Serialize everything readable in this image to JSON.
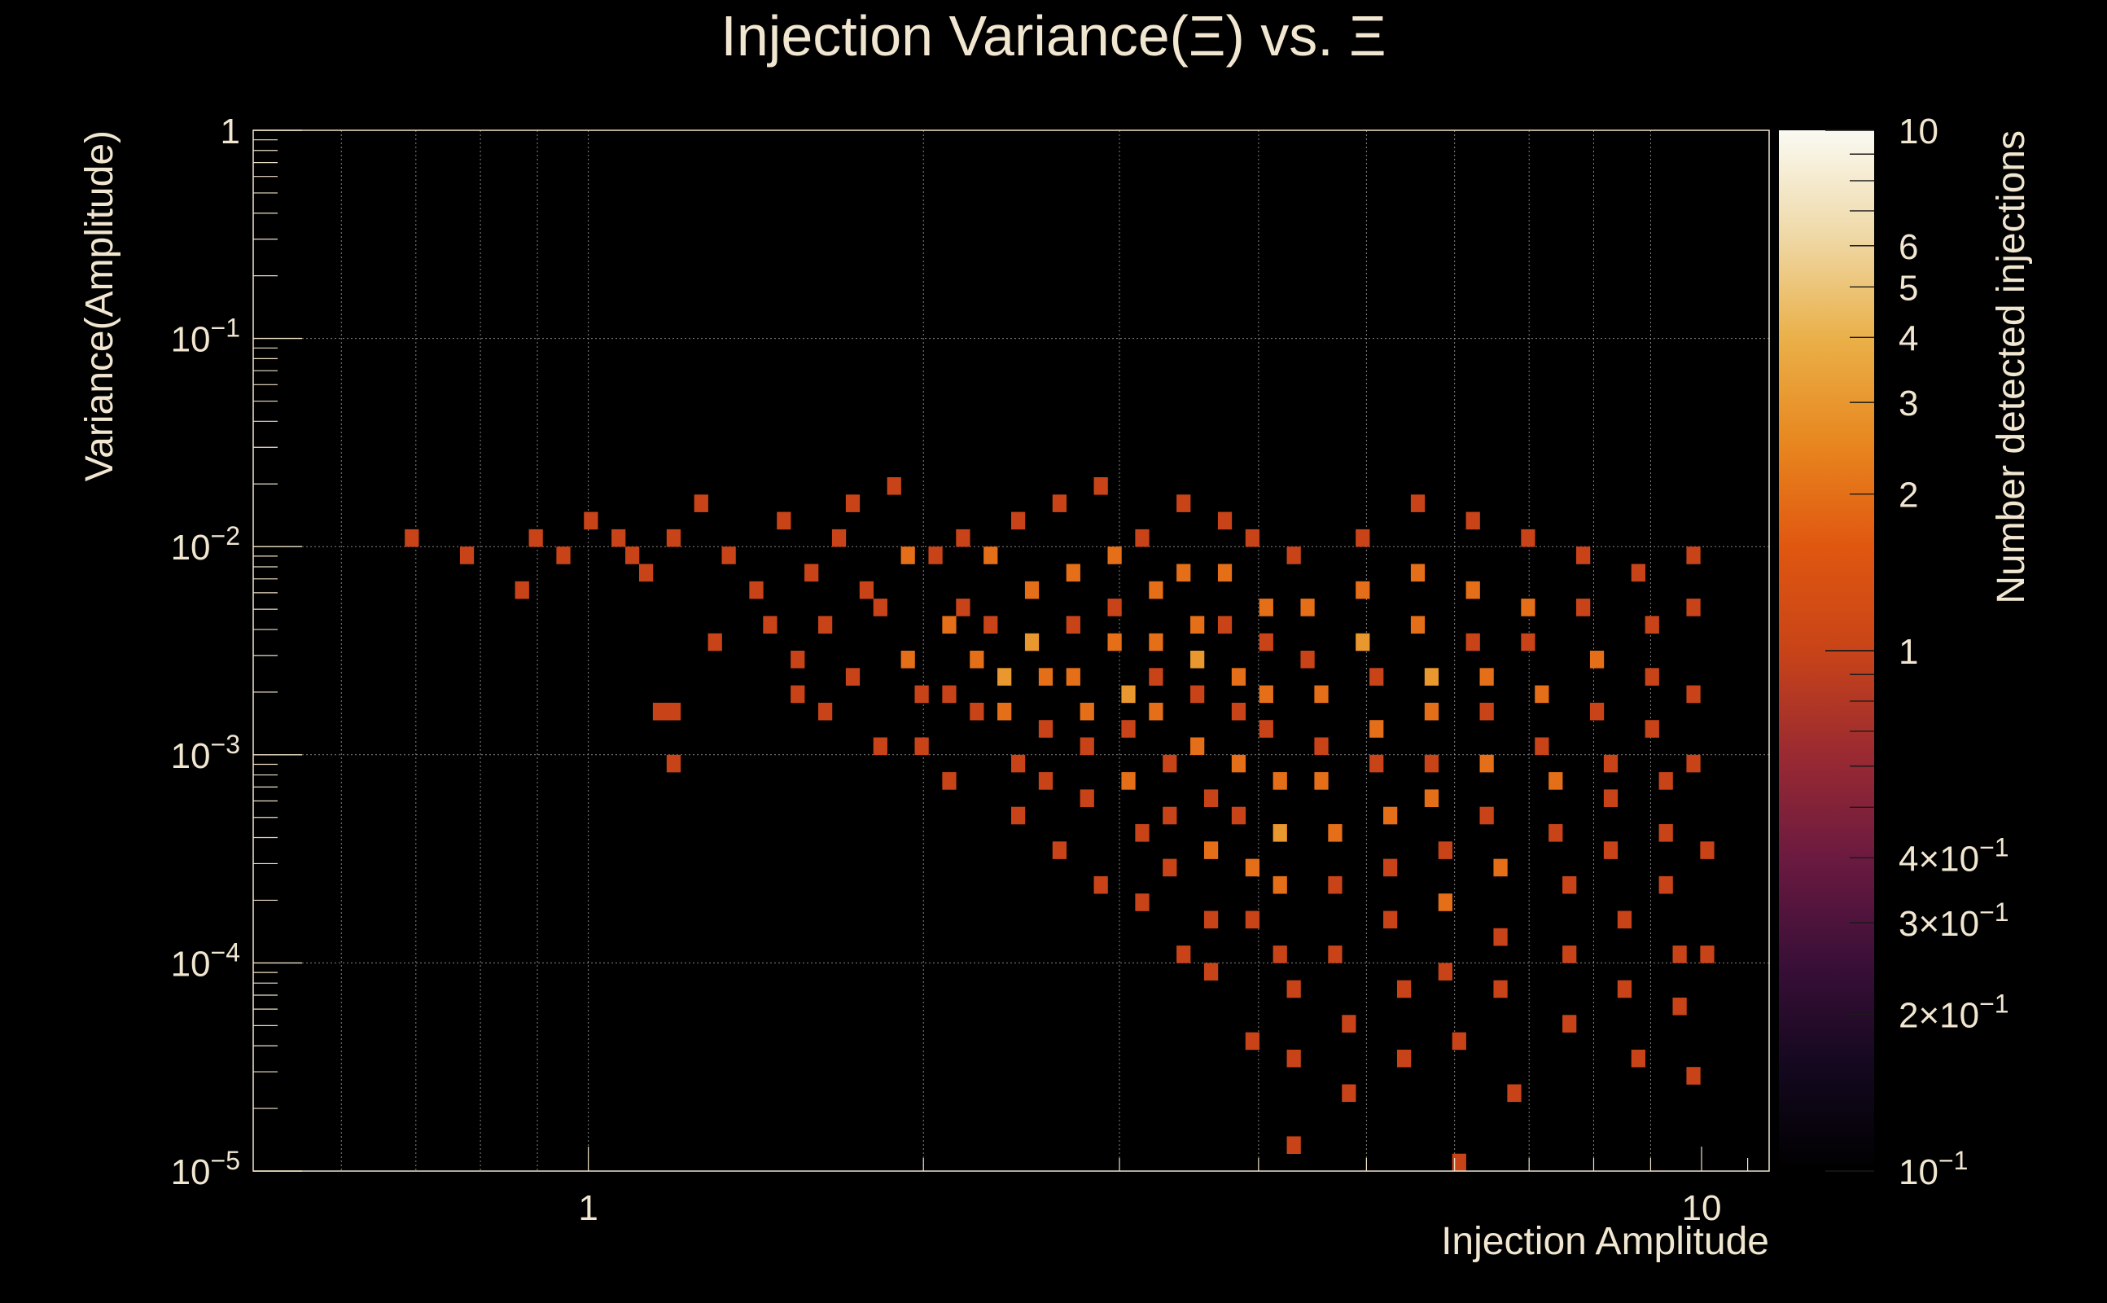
{
  "chart_data": {
    "type": "heatmap",
    "title": "Injection Variance(Ξ) vs. Ξ",
    "xlabel": "Injection Amplitude",
    "ylabel": "Variance(Amplitude)",
    "zlabel": "Number detected injections",
    "x_scale": "log",
    "y_scale": "log",
    "z_scale": "log",
    "xlim": [
      0.5,
      11.5
    ],
    "ylim": [
      1e-05,
      1
    ],
    "zlim": [
      0.1,
      10
    ],
    "grid": true,
    "x_ticks": [
      {
        "value": 1,
        "label": "1"
      },
      {
        "value": 10,
        "label": "10"
      }
    ],
    "y_ticks": [
      {
        "value": 1,
        "label": "1"
      },
      {
        "value": 0.1,
        "label": "10⁻¹"
      },
      {
        "value": 0.01,
        "label": "10⁻²"
      },
      {
        "value": 0.001,
        "label": "10⁻³"
      },
      {
        "value": 0.0001,
        "label": "10⁻⁴"
      },
      {
        "value": 1e-05,
        "label": "10⁻⁵"
      }
    ],
    "z_ticks": [
      {
        "value": 10,
        "label": "10"
      },
      {
        "value": 6,
        "label": "6"
      },
      {
        "value": 5,
        "label": "5"
      },
      {
        "value": 4,
        "label": "4"
      },
      {
        "value": 3,
        "label": "3"
      },
      {
        "value": 2,
        "label": "2"
      },
      {
        "value": 1,
        "label": "1"
      },
      {
        "value": 0.4,
        "label": "4×10⁻¹"
      },
      {
        "value": 0.3,
        "label": "3×10⁻¹"
      },
      {
        "value": 0.2,
        "label": "2×10⁻¹"
      },
      {
        "value": 0.1,
        "label": "10⁻¹"
      }
    ],
    "colorbar": {
      "palette": [
        "#000004",
        "#1b0c41",
        "#4a0c6b",
        "#781c6d",
        "#a52c60",
        "#cf4446",
        "#ed6925",
        "#fb9b06",
        "#f7d13d",
        "#fcffa4"
      ],
      "display_stops": [
        "#000000",
        "#14081f",
        "#3a0f38",
        "#6b1a40",
        "#9a2a32",
        "#c84418",
        "#e05710",
        "#e8871f",
        "#eab049",
        "#efd9a8",
        "#fafaf2"
      ]
    },
    "bins": [
      [
        0.7,
        0.0105,
        1
      ],
      [
        0.77,
        0.0093,
        1
      ],
      [
        0.86,
        0.0068,
        1
      ],
      [
        0.94,
        0.0094,
        1
      ],
      [
        0.9,
        0.012,
        1
      ],
      [
        1.0,
        0.013,
        1
      ],
      [
        1.05,
        0.0115,
        1
      ],
      [
        1.1,
        0.009,
        1
      ],
      [
        1.12,
        0.007,
        1
      ],
      [
        1.18,
        0.011,
        1
      ],
      [
        1.25,
        0.015,
        1
      ],
      [
        1.15,
        0.0016,
        1
      ],
      [
        1.2,
        0.0016,
        1
      ],
      [
        1.18,
        0.00085,
        1
      ],
      [
        1.3,
        0.0035,
        1
      ],
      [
        1.35,
        0.009,
        1
      ],
      [
        1.4,
        0.006,
        1
      ],
      [
        1.45,
        0.0045,
        1
      ],
      [
        1.5,
        0.013,
        1
      ],
      [
        1.52,
        0.003,
        1
      ],
      [
        1.55,
        0.002,
        1
      ],
      [
        1.6,
        0.008,
        1
      ],
      [
        1.62,
        0.0015,
        1
      ],
      [
        1.65,
        0.0042,
        1
      ],
      [
        1.7,
        0.011,
        1
      ],
      [
        1.72,
        0.0025,
        1
      ],
      [
        1.75,
        0.015,
        1
      ],
      [
        1.8,
        0.006,
        1
      ],
      [
        1.82,
        0.0012,
        1
      ],
      [
        1.85,
        0.005,
        1
      ],
      [
        1.9,
        0.018,
        1
      ],
      [
        1.92,
        0.0085,
        2
      ],
      [
        1.95,
        0.003,
        2
      ],
      [
        1.98,
        0.002,
        1
      ],
      [
        2.0,
        0.0012,
        1
      ],
      [
        2.05,
        0.009,
        1
      ],
      [
        2.08,
        0.0045,
        2
      ],
      [
        2.1,
        0.002,
        1
      ],
      [
        2.12,
        0.0007,
        1
      ],
      [
        2.15,
        0.011,
        1
      ],
      [
        2.2,
        0.0055,
        1
      ],
      [
        2.22,
        0.003,
        2
      ],
      [
        2.25,
        0.0015,
        1
      ],
      [
        2.3,
        0.0085,
        2
      ],
      [
        2.32,
        0.004,
        1
      ],
      [
        2.35,
        0.0025,
        3
      ],
      [
        2.38,
        0.0016,
        2
      ],
      [
        2.4,
        0.001,
        1
      ],
      [
        2.42,
        0.0005,
        1
      ],
      [
        2.45,
        0.013,
        1
      ],
      [
        2.5,
        0.0065,
        2
      ],
      [
        2.52,
        0.0035,
        3
      ],
      [
        2.55,
        0.0022,
        2
      ],
      [
        2.58,
        0.0013,
        1
      ],
      [
        2.6,
        0.0008,
        1
      ],
      [
        2.62,
        0.00035,
        1
      ],
      [
        2.65,
        0.015,
        1
      ],
      [
        2.7,
        0.0075,
        2
      ],
      [
        2.72,
        0.004,
        1
      ],
      [
        2.75,
        0.0026,
        2
      ],
      [
        2.78,
        0.0017,
        2
      ],
      [
        2.8,
        0.0011,
        1
      ],
      [
        2.82,
        0.0006,
        1
      ],
      [
        2.85,
        0.00025,
        1
      ],
      [
        2.9,
        0.018,
        1
      ],
      [
        2.95,
        0.009,
        2
      ],
      [
        2.98,
        0.005,
        1
      ],
      [
        3.0,
        0.0032,
        2
      ],
      [
        3.02,
        0.002,
        3
      ],
      [
        3.05,
        0.0013,
        1
      ],
      [
        3.08,
        0.0008,
        2
      ],
      [
        3.1,
        0.0004,
        1
      ],
      [
        3.12,
        0.00018,
        1
      ],
      [
        3.15,
        0.012,
        1
      ],
      [
        3.2,
        0.006,
        2
      ],
      [
        3.22,
        0.0036,
        2
      ],
      [
        3.25,
        0.0024,
        1
      ],
      [
        3.28,
        0.0015,
        2
      ],
      [
        3.3,
        0.0009,
        1
      ],
      [
        3.32,
        0.0005,
        1
      ],
      [
        3.35,
        0.00028,
        1
      ],
      [
        3.38,
        0.00012,
        1
      ],
      [
        3.4,
        0.016,
        1
      ],
      [
        3.45,
        0.008,
        2
      ],
      [
        3.48,
        0.0045,
        2
      ],
      [
        3.5,
        0.0028,
        3
      ],
      [
        3.52,
        0.0018,
        1
      ],
      [
        3.55,
        0.0011,
        2
      ],
      [
        3.58,
        0.0006,
        1
      ],
      [
        3.6,
        0.00033,
        2
      ],
      [
        3.62,
        0.00016,
        1
      ],
      [
        3.65,
        9e-05,
        1
      ],
      [
        3.7,
        0.014,
        1
      ],
      [
        3.75,
        0.007,
        2
      ],
      [
        3.78,
        0.004,
        1
      ],
      [
        3.8,
        0.0026,
        2
      ],
      [
        3.82,
        0.0016,
        1
      ],
      [
        3.85,
        0.001,
        2
      ],
      [
        3.88,
        0.00055,
        1
      ],
      [
        3.9,
        0.0003,
        2
      ],
      [
        3.92,
        0.00015,
        1
      ],
      [
        3.95,
        4.5e-05,
        1
      ],
      [
        4.0,
        0.011,
        1
      ],
      [
        4.05,
        0.0055,
        2
      ],
      [
        4.08,
        0.0033,
        1
      ],
      [
        4.1,
        0.0021,
        2
      ],
      [
        4.12,
        0.0013,
        1
      ],
      [
        4.15,
        0.0008,
        2
      ],
      [
        4.18,
        0.00045,
        3
      ],
      [
        4.2,
        0.00025,
        2
      ],
      [
        4.22,
        0.00012,
        1
      ],
      [
        4.25,
        7e-05,
        1
      ],
      [
        4.28,
        3.2e-05,
        1
      ],
      [
        4.3,
        1.3e-05,
        1
      ],
      [
        4.35,
        0.0095,
        1
      ],
      [
        4.4,
        0.0048,
        2
      ],
      [
        4.45,
        0.0028,
        1
      ],
      [
        4.5,
        0.0018,
        2
      ],
      [
        4.55,
        0.0011,
        1
      ],
      [
        4.6,
        0.0007,
        2
      ],
      [
        4.65,
        0.0004,
        2
      ],
      [
        4.7,
        0.00022,
        1
      ],
      [
        4.75,
        0.00011,
        1
      ],
      [
        4.8,
        5.5e-05,
        1
      ],
      [
        4.85,
        2.5e-05,
        1
      ],
      [
        4.9,
        0.012,
        1
      ],
      [
        4.95,
        0.006,
        2
      ],
      [
        5.0,
        0.0035,
        3
      ],
      [
        5.05,
        0.0022,
        1
      ],
      [
        5.1,
        0.0014,
        2
      ],
      [
        5.15,
        0.0009,
        1
      ],
      [
        5.2,
        0.0005,
        2
      ],
      [
        5.25,
        0.00028,
        1
      ],
      [
        5.3,
        0.00015,
        1
      ],
      [
        5.35,
        8e-05,
        1
      ],
      [
        5.4,
        3.5e-05,
        1
      ],
      [
        5.5,
        0.015,
        1
      ],
      [
        5.55,
        0.0075,
        2
      ],
      [
        5.6,
        0.0042,
        2
      ],
      [
        5.65,
        0.0026,
        3
      ],
      [
        5.7,
        0.0016,
        2
      ],
      [
        5.75,
        0.001,
        1
      ],
      [
        5.8,
        0.0006,
        2
      ],
      [
        5.85,
        0.00034,
        1
      ],
      [
        5.9,
        0.00018,
        2
      ],
      [
        5.95,
        9e-05,
        1
      ],
      [
        6.0,
        4.5e-05,
        1
      ],
      [
        6.05,
        1.2e-05,
        1
      ],
      [
        6.2,
        0.013,
        1
      ],
      [
        6.25,
        0.0065,
        2
      ],
      [
        6.3,
        0.0038,
        1
      ],
      [
        6.35,
        0.0024,
        2
      ],
      [
        6.4,
        0.0015,
        1
      ],
      [
        6.45,
        0.0009,
        2
      ],
      [
        6.5,
        0.0005,
        1
      ],
      [
        6.55,
        0.00028,
        2
      ],
      [
        6.6,
        0.00014,
        1
      ],
      [
        6.65,
        7e-05,
        1
      ],
      [
        6.7,
        2.5e-05,
        1
      ],
      [
        6.9,
        0.011,
        1
      ],
      [
        6.95,
        0.0055,
        2
      ],
      [
        7.0,
        0.0032,
        1
      ],
      [
        7.1,
        0.002,
        2
      ],
      [
        7.2,
        0.0012,
        1
      ],
      [
        7.3,
        0.0007,
        2
      ],
      [
        7.4,
        0.0004,
        1
      ],
      [
        7.5,
        0.00022,
        1
      ],
      [
        7.6,
        0.00011,
        1
      ],
      [
        7.7,
        5.5e-05,
        1
      ],
      [
        7.8,
        0.0095,
        1
      ],
      [
        7.9,
        0.0048,
        1
      ],
      [
        8.0,
        0.0028,
        2
      ],
      [
        8.1,
        0.0017,
        1
      ],
      [
        8.2,
        0.001,
        1
      ],
      [
        8.3,
        0.0006,
        1
      ],
      [
        8.4,
        0.00033,
        1
      ],
      [
        8.5,
        0.00017,
        1
      ],
      [
        8.6,
        8e-05,
        1
      ],
      [
        8.7,
        3.5e-05,
        1
      ],
      [
        8.8,
        0.008,
        1
      ],
      [
        8.9,
        0.004,
        1
      ],
      [
        9.0,
        0.0024,
        1
      ],
      [
        9.1,
        0.0014,
        1
      ],
      [
        9.2,
        0.0008,
        1
      ],
      [
        9.3,
        0.00045,
        1
      ],
      [
        9.4,
        0.00024,
        1
      ],
      [
        9.5,
        0.00012,
        1
      ],
      [
        9.6,
        6e-05,
        1
      ],
      [
        9.7,
        2.8e-05,
        1
      ],
      [
        9.8,
        0.009,
        1
      ],
      [
        9.85,
        0.005,
        1
      ],
      [
        9.9,
        0.002,
        1
      ],
      [
        9.95,
        0.0009,
        1
      ],
      [
        10.0,
        0.00035,
        1
      ],
      [
        10.0,
        0.00012,
        1
      ]
    ]
  }
}
